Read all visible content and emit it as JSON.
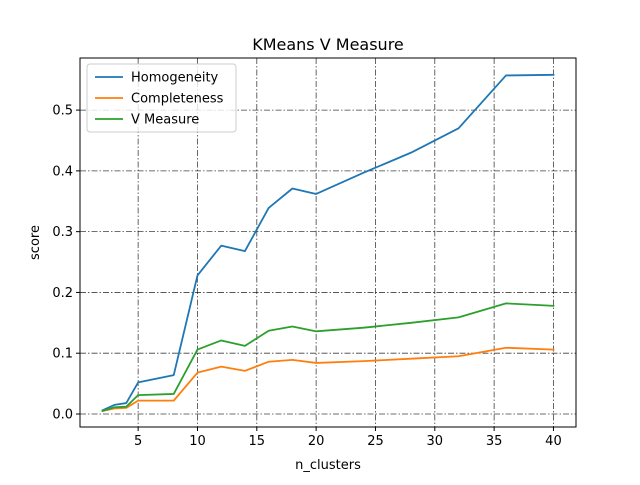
{
  "chart_data": {
    "type": "line",
    "title": "KMeans V Measure",
    "xlabel": "n_clusters",
    "ylabel": "score",
    "xlim": [
      0.1,
      41.9
    ],
    "ylim": [
      -0.0214,
      0.5857
    ],
    "xticks": [
      5,
      10,
      15,
      20,
      25,
      30,
      35,
      40
    ],
    "yticks": [
      0.0,
      0.1,
      0.2,
      0.3,
      0.4,
      0.5
    ],
    "xtick_labels": [
      "5",
      "10",
      "15",
      "20",
      "25",
      "30",
      "35",
      "40"
    ],
    "ytick_labels": [
      "0.0",
      "0.1",
      "0.2",
      "0.3",
      "0.4",
      "0.5"
    ],
    "grid": true,
    "legend_position": "top-left",
    "x": [
      2,
      3,
      4,
      5,
      8,
      10,
      12,
      14,
      16,
      18,
      20,
      24,
      28,
      32,
      36,
      40
    ],
    "series": [
      {
        "name": "Homogeneity",
        "color": "#1f77b4",
        "values": [
          0.006,
          0.015,
          0.018,
          0.052,
          0.064,
          0.228,
          0.277,
          0.268,
          0.339,
          0.371,
          0.362,
          0.397,
          0.43,
          0.47,
          0.557,
          0.558
        ]
      },
      {
        "name": "Completeness",
        "color": "#ff7f0e",
        "values": [
          0.005,
          0.009,
          0.01,
          0.022,
          0.022,
          0.068,
          0.078,
          0.071,
          0.086,
          0.089,
          0.084,
          0.087,
          0.091,
          0.095,
          0.109,
          0.106
        ]
      },
      {
        "name": "V Measure",
        "color": "#2ca02c",
        "values": [
          0.005,
          0.011,
          0.012,
          0.031,
          0.033,
          0.106,
          0.121,
          0.112,
          0.137,
          0.144,
          0.136,
          0.142,
          0.15,
          0.159,
          0.182,
          0.178
        ]
      }
    ]
  }
}
